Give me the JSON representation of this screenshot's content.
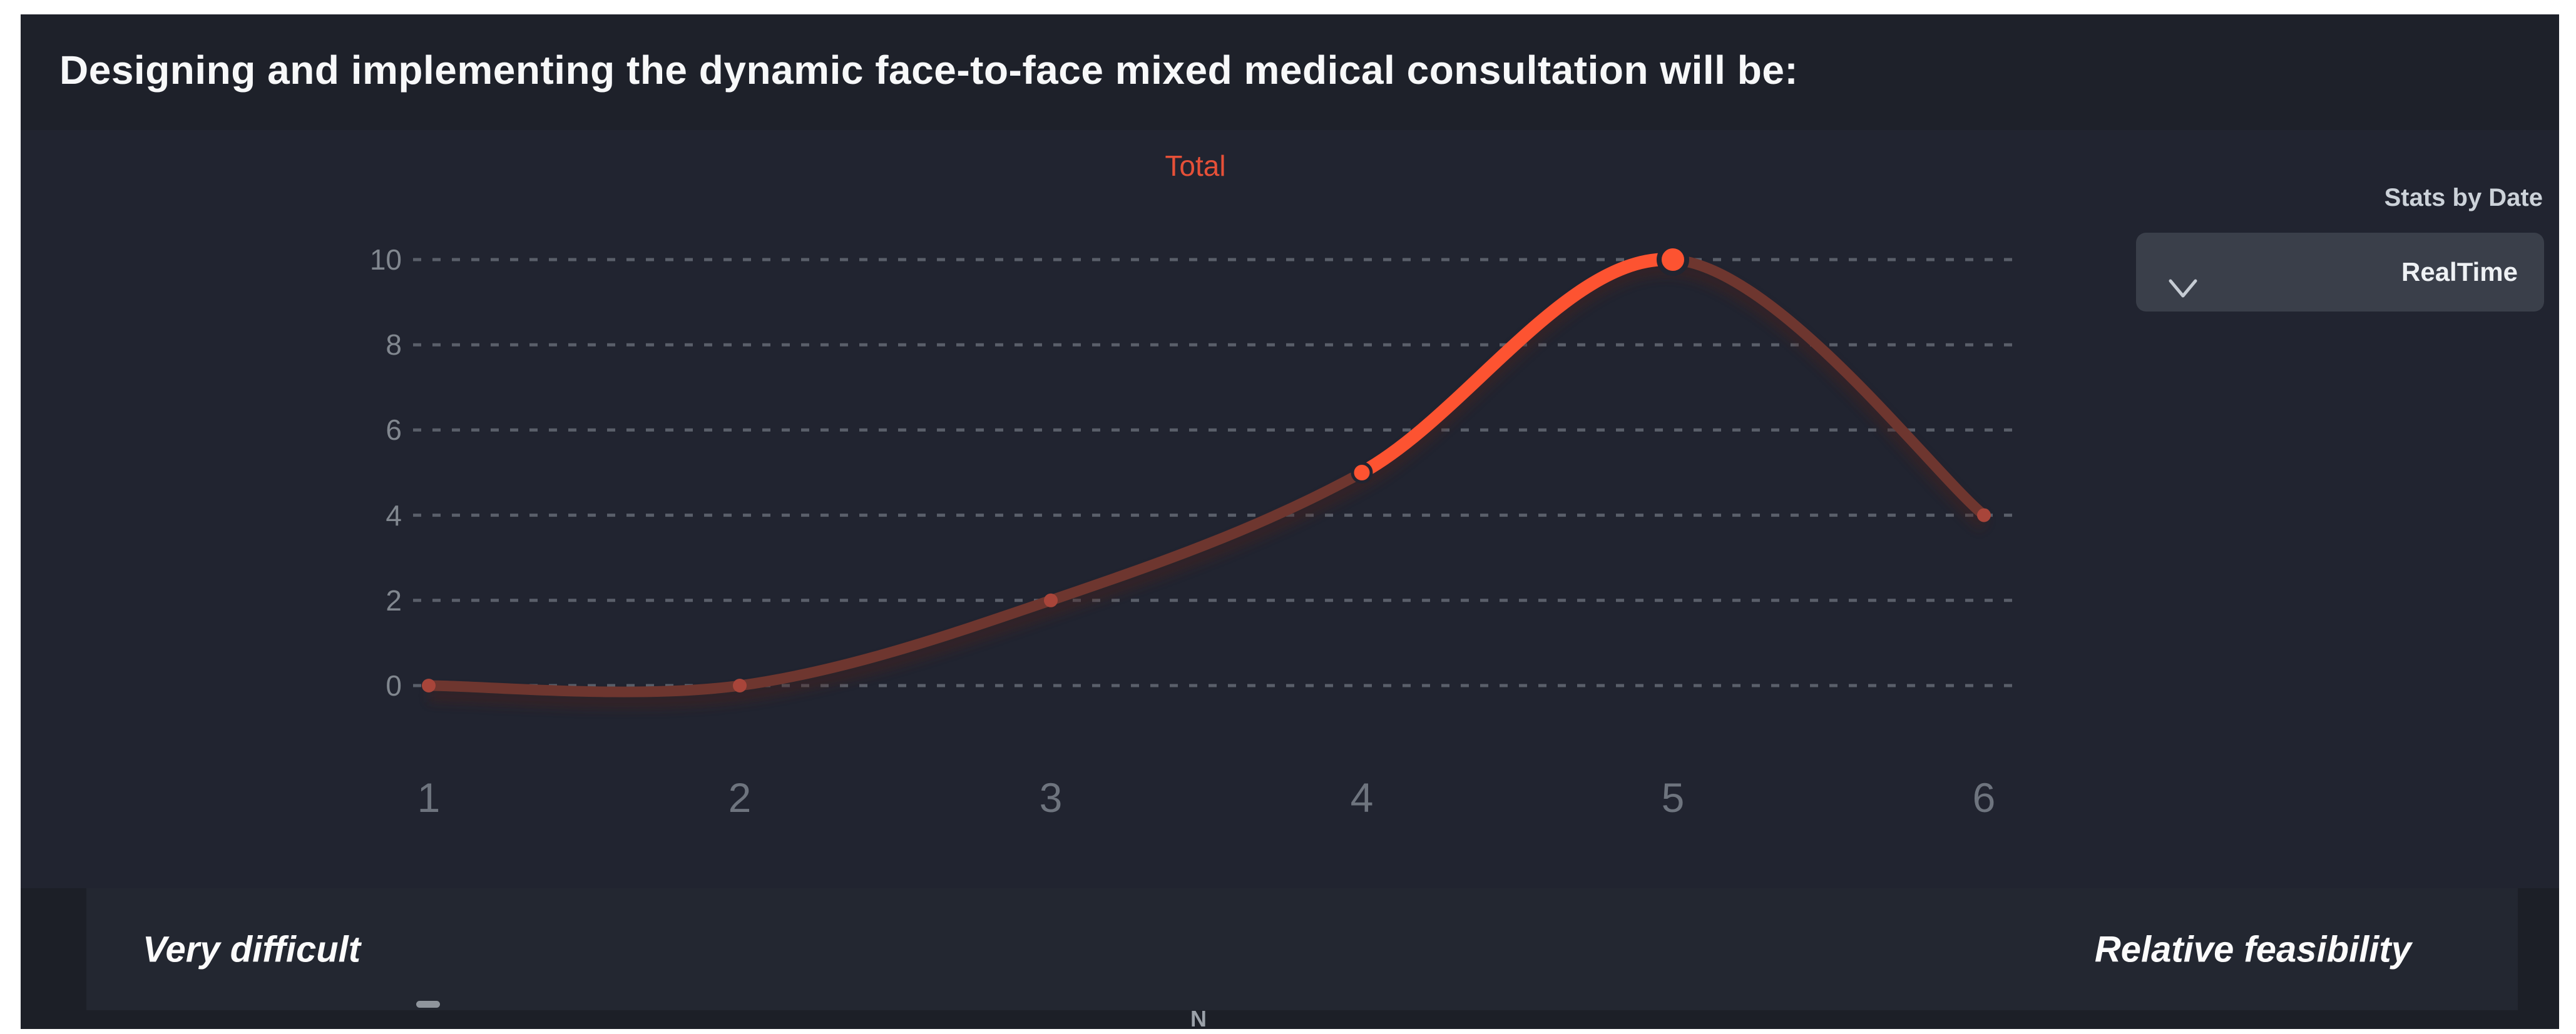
{
  "header": {
    "title": "Designing and implementing the dynamic face-to-face mixed medical consultation will be:"
  },
  "legend": {
    "label": "Total",
    "color": "#e65038"
  },
  "controls": {
    "stats_by_date_label": "Stats by Date",
    "dropdown_value": "RealTime",
    "dropdown_icon": "chevron-down-icon"
  },
  "chart_data": {
    "type": "line",
    "series_name": "Total",
    "x": [
      1,
      2,
      3,
      4,
      5,
      6
    ],
    "values": [
      0,
      0,
      2,
      5,
      10,
      4
    ],
    "x_ticks": [
      "1",
      "2",
      "3",
      "4",
      "5",
      "6"
    ],
    "y_ticks_top_to_bottom": [
      "10",
      "8",
      "6",
      "4",
      "2",
      "0"
    ],
    "ylim": [
      0,
      10
    ],
    "grid": "horizontal-dashed",
    "legend_position": "top-center",
    "highlight_from_index": 3,
    "highlight_to_index": 4,
    "colors": {
      "line_muted": "#6e362f",
      "line_highlight": "#fd5331",
      "dot_muted": "#a8453a",
      "gridline": "#939aa4",
      "background": "#212430"
    }
  },
  "footer": {
    "left_label": "Very difficult",
    "right_label": "Relative feasibility",
    "clipped_glyph": "N"
  }
}
